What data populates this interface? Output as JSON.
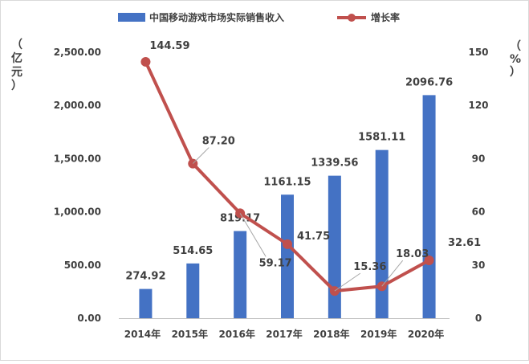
{
  "chart_data": {
    "type": "bar",
    "categories": [
      "2014年",
      "2015年",
      "2016年",
      "2017年",
      "2018年",
      "2019年",
      "2020年"
    ],
    "series": [
      {
        "name": "中国移动游戏市场实际销售收入",
        "type": "bar",
        "axis": "left",
        "color": "#4472C4",
        "values": [
          274.92,
          514.65,
          819.17,
          1161.15,
          1339.56,
          1581.11,
          2096.76
        ],
        "labels": [
          "274.92",
          "514.65",
          "819.17",
          "1161.15",
          "1339.56",
          "1581.11",
          "2096.76"
        ]
      },
      {
        "name": "增长率",
        "type": "line",
        "axis": "right",
        "color": "#C0504D",
        "values": [
          144.59,
          87.2,
          59.17,
          41.75,
          15.36,
          18.03,
          32.61
        ],
        "labels": [
          "144.59",
          "87.20",
          "59.17",
          "41.75",
          "15.36",
          "18.03",
          "32.61"
        ]
      }
    ],
    "y_left": {
      "unit_label": "（亿元）",
      "range": [
        0,
        2500
      ],
      "ticks": [
        "0.00",
        "500.00",
        "1,000.00",
        "1,500.00",
        "2,000.00",
        "2,500.00"
      ]
    },
    "y_right": {
      "unit_label": "（%）",
      "range": [
        0,
        150
      ],
      "ticks": [
        "0",
        "30",
        "60",
        "90",
        "120",
        "150"
      ]
    },
    "legend_position": "top",
    "grid": false
  }
}
